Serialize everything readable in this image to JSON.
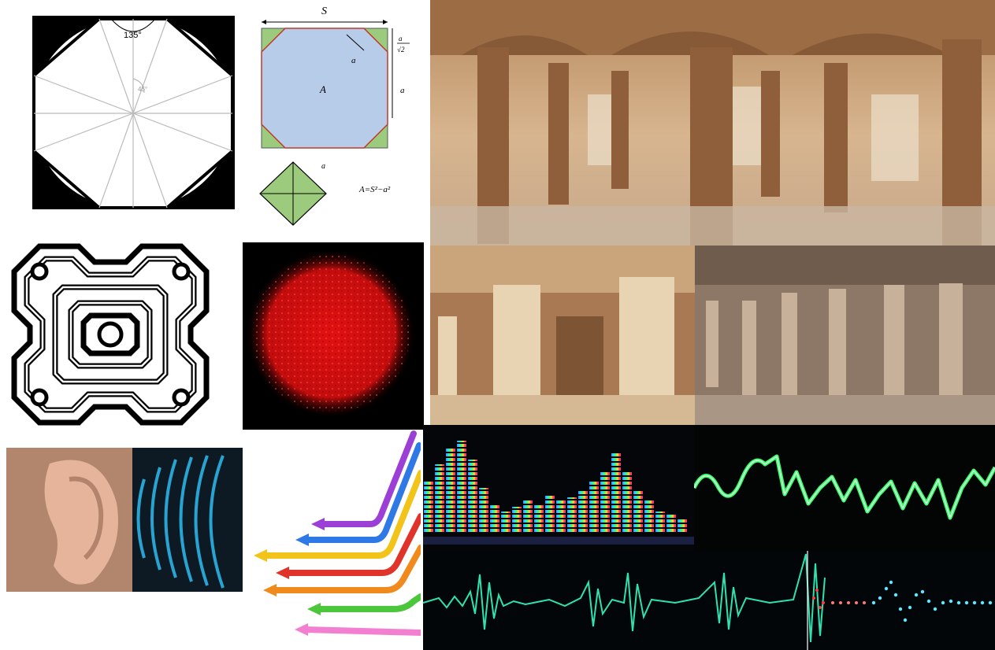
{
  "collage": {
    "octagon": {
      "angle_label": "135°",
      "small_angle_label": "45°"
    },
    "square_diagram": {
      "side_label": "S",
      "edge_label": "a",
      "diag_label_num": "a",
      "diag_label_den": "√2",
      "area_label": "A",
      "formula": "A=S²−a²"
    }
  },
  "colors": {
    "square_fill": "#b7cce8",
    "corner_green": "#9ccb7d",
    "particle_red": "#e11010",
    "wave_cyan": "#2bb3e6",
    "scope_green": "#39ff6a",
    "wave_teal": "#2de3b0"
  },
  "arrows": [
    "#9b3fd6",
    "#2e79e6",
    "#f2c318",
    "#e0342a",
    "#f08a1c",
    "#4cc63a",
    "#f37fd0"
  ]
}
